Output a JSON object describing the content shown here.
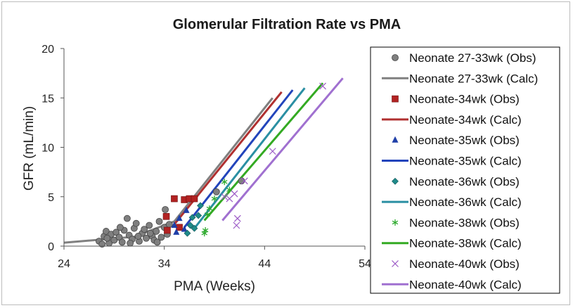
{
  "chart_data": {
    "type": "scatter",
    "title": "Glomerular Filtration Rate vs PMA",
    "xlabel": "PMA (Weeks)",
    "ylabel": "GFR (mL/min)",
    "xlim": [
      24,
      54
    ],
    "ylim": [
      0,
      20
    ],
    "xticks": [
      "24",
      "34",
      "44",
      "54"
    ],
    "xtick_values": [
      24,
      34,
      44,
      54
    ],
    "yticks": [
      "0",
      "5",
      "10",
      "15",
      "20"
    ],
    "ytick_values": [
      0,
      5,
      10,
      15,
      20
    ],
    "grid": false,
    "legend_position": "right",
    "series": [
      {
        "name": "Neonate 27-33wk (Obs)",
        "kind": "obs",
        "marker": "circle",
        "color": "#7f7f7f",
        "points": [
          [
            27.5,
            0.5
          ],
          [
            28.0,
            1.0
          ],
          [
            28.2,
            1.5
          ],
          [
            28.5,
            0.3
          ],
          [
            28.7,
            1.2
          ],
          [
            29.0,
            0.6
          ],
          [
            29.2,
            1.4
          ],
          [
            29.5,
            0.9
          ],
          [
            29.8,
            0.4
          ],
          [
            30.0,
            1.6
          ],
          [
            30.3,
            2.8
          ],
          [
            30.5,
            1.1
          ],
          [
            30.8,
            0.7
          ],
          [
            31.0,
            1.8
          ],
          [
            31.2,
            2.3
          ],
          [
            31.5,
            0.5
          ],
          [
            31.8,
            1.3
          ],
          [
            32.0,
            1.7
          ],
          [
            32.2,
            0.8
          ],
          [
            32.5,
            2.1
          ],
          [
            32.8,
            1.0
          ],
          [
            33.0,
            0.6
          ],
          [
            33.2,
            1.5
          ],
          [
            33.5,
            2.5
          ],
          [
            33.7,
            0.9
          ],
          [
            34.0,
            1.9
          ],
          [
            34.1,
            3.7
          ],
          [
            34.3,
            1.2
          ],
          [
            34.5,
            2.2
          ],
          [
            27.8,
            0.2
          ],
          [
            28.3,
            0.8
          ],
          [
            29.6,
            1.9
          ],
          [
            30.6,
            0.3
          ],
          [
            31.4,
            1.0
          ],
          [
            32.6,
            1.3
          ],
          [
            33.3,
            0.4
          ],
          [
            39.2,
            5.5
          ],
          [
            41.7,
            6.6
          ]
        ]
      },
      {
        "name": "Neonate 27-33wk (Calc)",
        "kind": "calc",
        "color": "#808080",
        "line": [
          [
            24.0,
            0.35
          ],
          [
            31.0,
            0.95
          ],
          [
            35.0,
            2.5
          ],
          [
            44.8,
            15.0
          ]
        ]
      },
      {
        "name": "Neonate-34wk (Obs)",
        "kind": "obs",
        "marker": "square",
        "color": "#b22222",
        "points": [
          [
            34.2,
            3.0
          ],
          [
            34.3,
            1.6
          ],
          [
            35.0,
            4.8
          ],
          [
            35.5,
            1.9
          ],
          [
            36.0,
            4.7
          ],
          [
            36.5,
            4.8
          ],
          [
            37.0,
            4.8
          ]
        ]
      },
      {
        "name": "Neonate-34wk  (Calc)",
        "kind": "calc",
        "color": "#b03030",
        "line": [
          [
            35.0,
            2.2
          ],
          [
            45.7,
            15.6
          ]
        ]
      },
      {
        "name": "Neonate-35wk (Obs)",
        "kind": "obs",
        "marker": "triangle",
        "color": "#1f3fa8",
        "points": [
          [
            35.0,
            2.1
          ],
          [
            35.2,
            1.4
          ],
          [
            35.5,
            2.8
          ],
          [
            36.0,
            1.7
          ],
          [
            36.2,
            3.6
          ]
        ]
      },
      {
        "name": "Neonate-35wk  (Calc)",
        "kind": "calc",
        "color": "#2244bb",
        "line": [
          [
            36.0,
            1.9
          ],
          [
            46.8,
            15.8
          ]
        ]
      },
      {
        "name": "Neonate-36wk (Obs)",
        "kind": "obs",
        "marker": "diamond",
        "color": "#1f8a8a",
        "points": [
          [
            36.3,
            1.3
          ],
          [
            36.6,
            2.1
          ],
          [
            37.0,
            1.8
          ],
          [
            37.4,
            3.1
          ],
          [
            37.6,
            4.1
          ],
          [
            36.8,
            2.9
          ]
        ]
      },
      {
        "name": "Neonate-36wk  (Calc)",
        "kind": "calc",
        "color": "#2a8fa3",
        "line": [
          [
            37.0,
            1.8
          ],
          [
            48.0,
            16.0
          ]
        ]
      },
      {
        "name": "Neonate-38wk (Obs)",
        "kind": "obs",
        "marker": "star",
        "color": "#2eaa2e",
        "points": [
          [
            38.0,
            1.3
          ],
          [
            38.1,
            1.6
          ],
          [
            38.3,
            3.2
          ],
          [
            38.5,
            3.8
          ],
          [
            39.0,
            4.8
          ],
          [
            40.0,
            6.5
          ],
          [
            40.5,
            5.7
          ]
        ]
      },
      {
        "name": "Neonate-38wk  (Calc)",
        "kind": "calc",
        "color": "#33aa22",
        "line": [
          [
            38.0,
            2.6
          ],
          [
            49.8,
            16.5
          ]
        ]
      },
      {
        "name": "Neonate-40wk (Obs)",
        "kind": "obs",
        "marker": "x",
        "color": "#9b59c6",
        "points": [
          [
            40.0,
            5.0
          ],
          [
            40.5,
            4.8
          ],
          [
            41.0,
            5.3
          ],
          [
            41.2,
            2.1
          ],
          [
            41.3,
            2.8
          ],
          [
            42.0,
            6.6
          ],
          [
            44.8,
            9.6
          ],
          [
            49.8,
            16.2
          ]
        ]
      },
      {
        "name": "Neonate-40wk  (Calc)",
        "kind": "calc",
        "color": "#a070d0",
        "line": [
          [
            39.8,
            2.6
          ],
          [
            51.8,
            17.0
          ]
        ]
      }
    ]
  }
}
